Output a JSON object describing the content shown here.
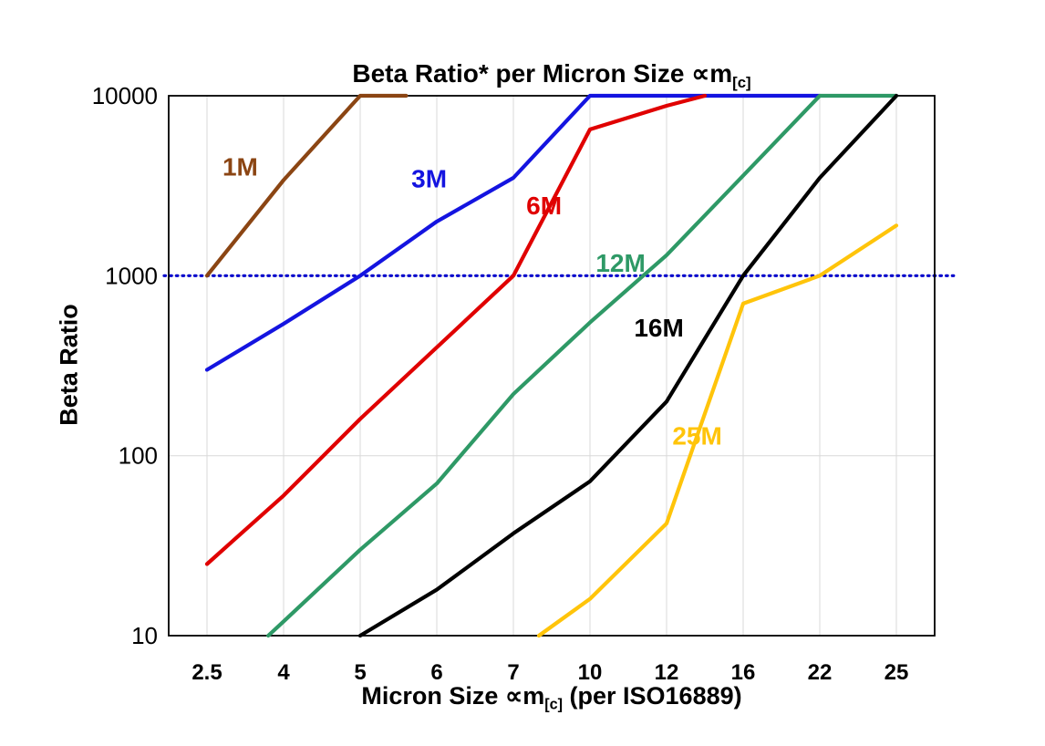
{
  "chart_data": {
    "type": "line",
    "title": {
      "main": "Beta Ratio* per Micron Size ∝m",
      "sub": "[c]"
    },
    "xlabel": {
      "pre": "Micron Size ∝m",
      "sub": "[c]",
      "post": " (per ISO16889)"
    },
    "ylabel": "Beta Ratio",
    "x_categories": [
      2.5,
      4,
      5,
      6,
      7,
      10,
      12,
      16,
      22,
      25
    ],
    "y_ticks": [
      10000,
      1000,
      100,
      10
    ],
    "y_scale": "log",
    "ylim": [
      10,
      10000
    ],
    "grid": {
      "vertical": true,
      "horizontal": [
        100,
        1000
      ],
      "color": "#d9d9d9"
    },
    "reference_line": {
      "y": 1000,
      "color": "#0000cc",
      "style": "dotted"
    },
    "series": [
      {
        "name": "1M",
        "color": "#8b4513",
        "points": [
          [
            2.5,
            1000
          ],
          [
            4,
            3400
          ],
          [
            5,
            10000
          ],
          [
            5.6,
            10000
          ]
        ],
        "label_at": [
          3.15,
          3600
        ]
      },
      {
        "name": "3M",
        "color": "#1414e0",
        "points": [
          [
            2.5,
            300
          ],
          [
            4,
            540
          ],
          [
            5,
            1000
          ],
          [
            6,
            2000
          ],
          [
            7,
            3500
          ],
          [
            10,
            10000
          ],
          [
            22,
            10000
          ]
        ],
        "label_at": [
          5.9,
          3100
        ]
      },
      {
        "name": "6M",
        "color": "#e00000",
        "points": [
          [
            2.5,
            25
          ],
          [
            4,
            60
          ],
          [
            5,
            160
          ],
          [
            6,
            400
          ],
          [
            7,
            1000
          ],
          [
            10,
            6500
          ],
          [
            12,
            8800
          ],
          [
            14,
            10000
          ]
        ],
        "label_at": [
          8.2,
          2200
        ]
      },
      {
        "name": "12M",
        "color": "#2e9966",
        "points": [
          [
            3.7,
            10
          ],
          [
            4,
            12
          ],
          [
            5,
            30
          ],
          [
            6,
            70
          ],
          [
            7,
            220
          ],
          [
            10,
            550
          ],
          [
            12,
            1300
          ],
          [
            16,
            3600
          ],
          [
            22,
            10000
          ],
          [
            25,
            10000
          ]
        ],
        "label_at": [
          10.8,
          1050
        ]
      },
      {
        "name": "16M",
        "color": "#000000",
        "points": [
          [
            5,
            10
          ],
          [
            6,
            18
          ],
          [
            7,
            37
          ],
          [
            10,
            72
          ],
          [
            12,
            200
          ],
          [
            16,
            1000
          ],
          [
            22,
            3500
          ],
          [
            25,
            10000
          ]
        ],
        "label_at": [
          11.8,
          460
        ]
      },
      {
        "name": "25M",
        "color": "#ffc40a",
        "points": [
          [
            8,
            10
          ],
          [
            10,
            16
          ],
          [
            12,
            42
          ],
          [
            16,
            700
          ],
          [
            22,
            1000
          ],
          [
            25,
            1900
          ]
        ],
        "label_at": [
          13.6,
          115
        ]
      }
    ]
  }
}
